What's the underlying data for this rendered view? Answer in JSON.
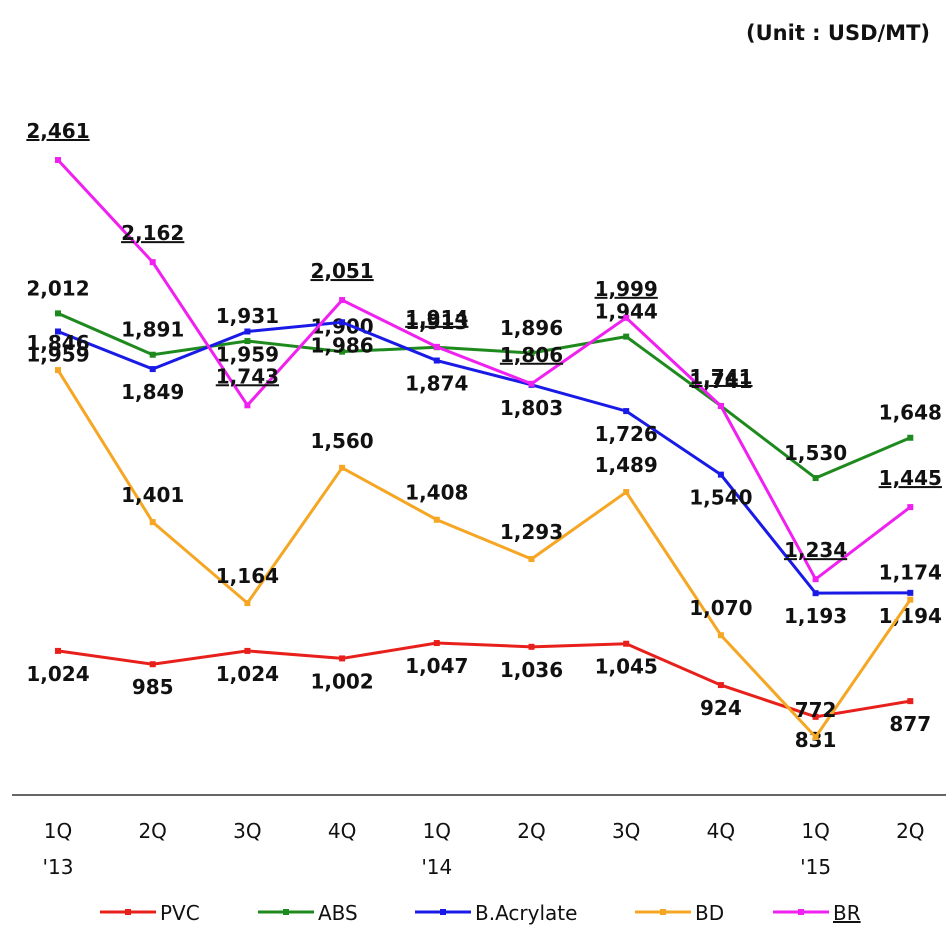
{
  "chart_data": {
    "type": "line",
    "unit": "(Unit : USD/MT)",
    "categories": [
      "1Q\n'13",
      "2Q",
      "3Q",
      "4Q",
      "1Q\n'14",
      "2Q",
      "3Q",
      "4Q",
      "1Q\n'15",
      "2Q"
    ],
    "series": [
      {
        "name": "PVC",
        "color": "#e8201c",
        "values": [
          1024,
          985,
          1024,
          1002,
          1047,
          1036,
          1045,
          924,
          831,
          877
        ],
        "value_labels": [
          "1,024",
          "985",
          "1,024",
          "1,002",
          "1,047",
          "1,036",
          "1,045",
          "924",
          "831",
          "877"
        ]
      },
      {
        "name": "ABS",
        "color": "#1e8a1e",
        "values": [
          2012,
          1891,
          1931,
          1900,
          1913,
          1896,
          1944,
          1741,
          1530,
          1648
        ],
        "value_labels": [
          "2,012",
          "1,891",
          "1,931",
          "1,900",
          "1,913",
          "1,896",
          "1,944",
          "1,741",
          "1,530",
          "1,648"
        ]
      },
      {
        "name": "B.Acrylate",
        "color": "#1a1ae6",
        "values": [
          1959,
          1849,
          1959,
          1986,
          1874,
          1803,
          1726,
          1540,
          1193,
          1194
        ],
        "value_labels": [
          "1,959",
          "1,849",
          "1,959",
          "1,986",
          "1,874",
          "1,803",
          "1,726",
          "1,540",
          "1,193",
          "1,194"
        ]
      },
      {
        "name": "BD",
        "color": "#f5a623",
        "values": [
          1846,
          1401,
          1164,
          1560,
          1408,
          1293,
          1489,
          1070,
          772,
          1174
        ],
        "value_labels": [
          "1,846",
          "1,401",
          "1,164",
          "1,560",
          "1,408",
          "1,293",
          "1,489",
          "1,070",
          "772",
          "1,174"
        ]
      },
      {
        "name": "BR",
        "color": "#f020f0",
        "values": [
          2461,
          2162,
          1743,
          2051,
          1914,
          1806,
          1999,
          1741,
          1234,
          1445
        ],
        "value_labels": [
          "2,461",
          "2,162",
          "1,743",
          "2,051",
          "1,914",
          "1,806",
          "1,999",
          "1,741",
          "1,234",
          "1,445"
        ]
      }
    ],
    "legend": "bottom"
  }
}
